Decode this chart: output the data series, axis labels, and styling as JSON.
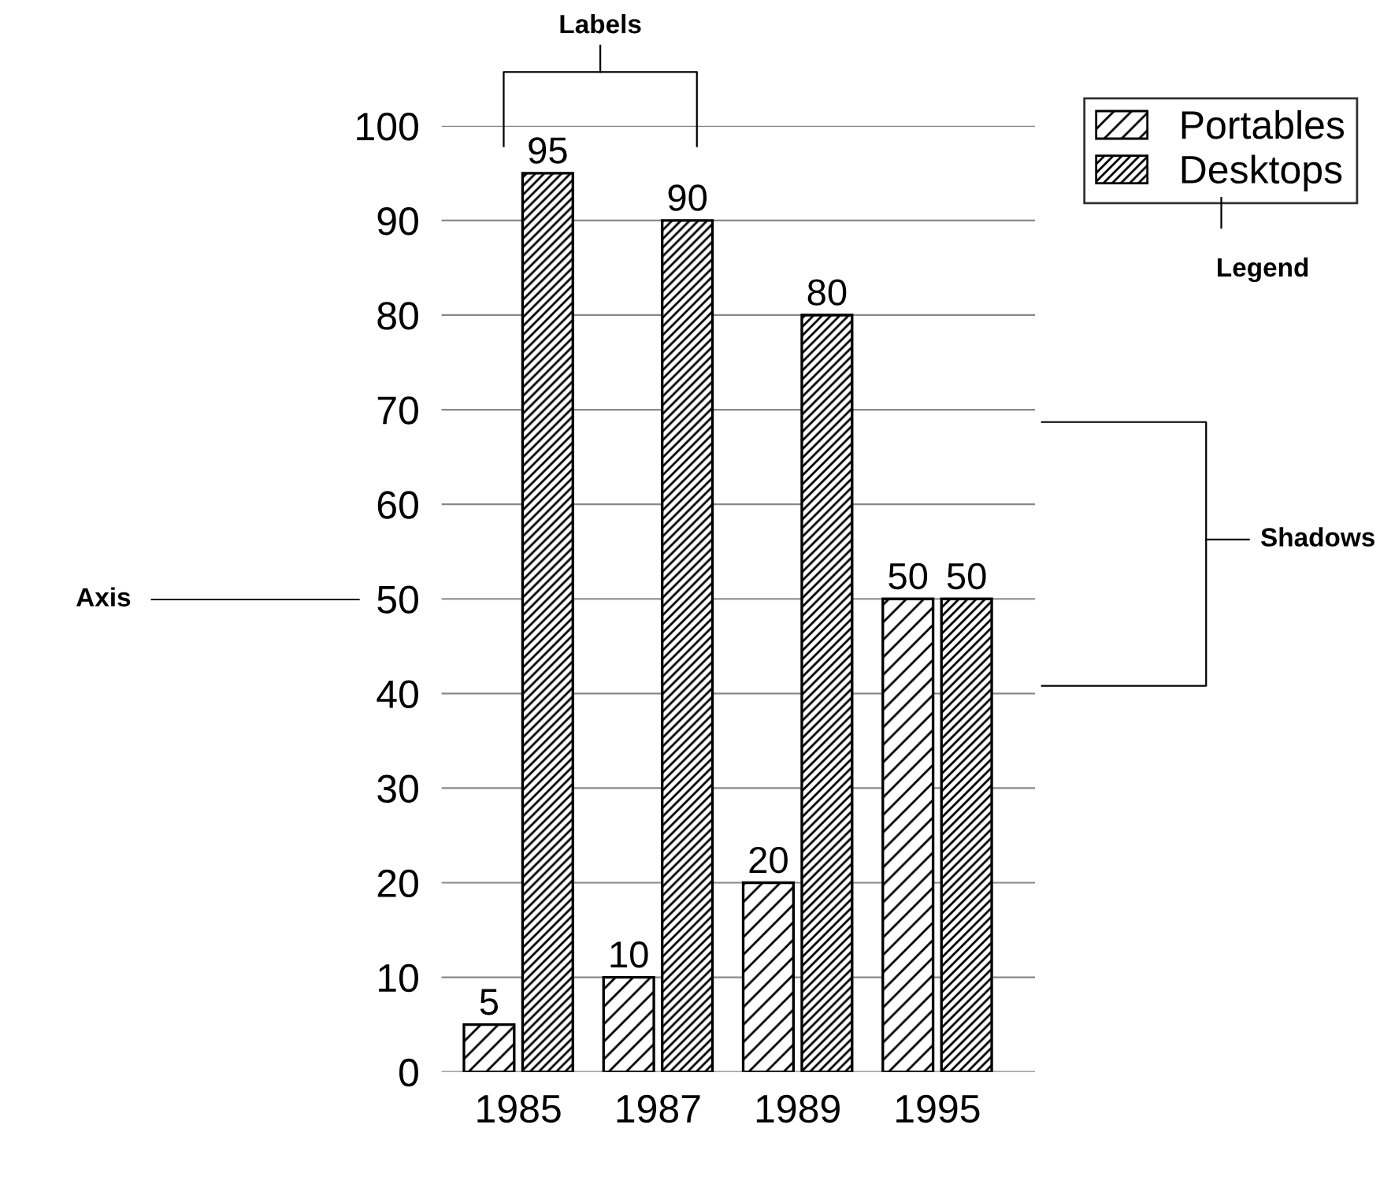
{
  "chart_data": {
    "type": "bar",
    "categories": [
      "1985",
      "1987",
      "1989",
      "1995"
    ],
    "series": [
      {
        "name": "Portables",
        "color": "#000000",
        "values": [
          5,
          10,
          20,
          50
        ]
      },
      {
        "name": "Desktops",
        "color": "#000000",
        "values": [
          95,
          90,
          80,
          50
        ]
      }
    ],
    "ylim": [
      0,
      100
    ],
    "yticks": [
      0,
      10,
      20,
      30,
      40,
      50,
      60,
      70,
      80,
      90,
      100
    ],
    "grid": "y",
    "legend": "top right",
    "data_labels": true,
    "annotations": [
      "Labels",
      "Legend",
      "Shadows",
      "Axis"
    ]
  }
}
